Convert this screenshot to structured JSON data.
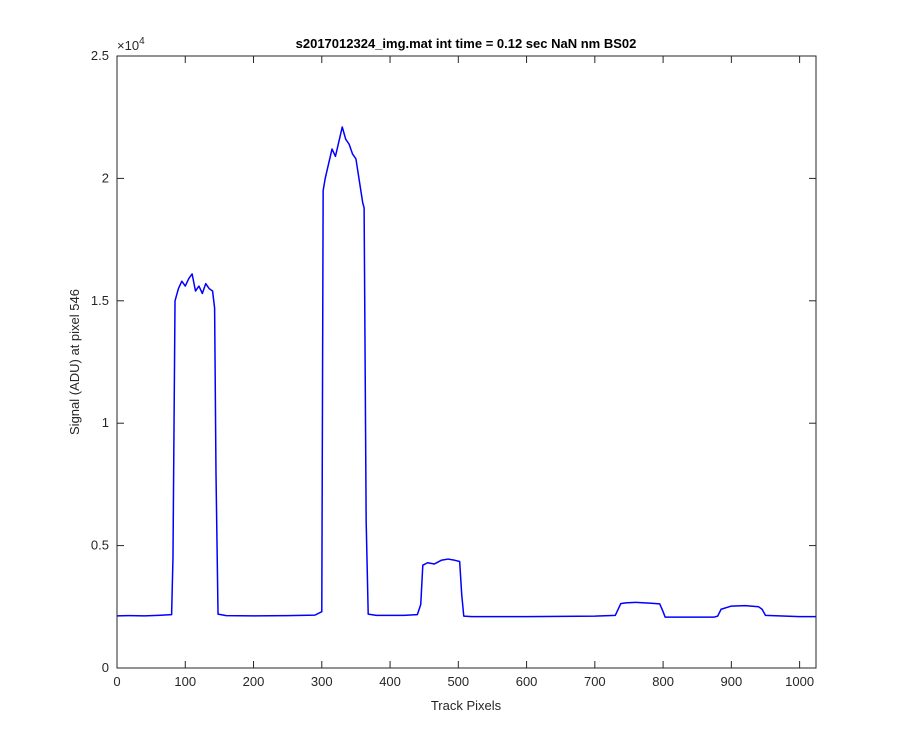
{
  "chart_data": {
    "type": "line",
    "title": "s2017012324_img.mat int time = 0.12 sec  NaN nm BS02",
    "xlabel": "Track Pixels",
    "ylabel": "Signal (ADU) at pixel 546",
    "xlim": [
      0,
      1024
    ],
    "ylim": [
      0,
      25000
    ],
    "y_exponent_label": "×10",
    "y_exponent_power": "4",
    "x_ticks": [
      0,
      100,
      200,
      300,
      400,
      500,
      600,
      700,
      800,
      900,
      1000
    ],
    "x_tick_labels": [
      "0",
      "100",
      "200",
      "300",
      "400",
      "500",
      "600",
      "700",
      "800",
      "900",
      "1000"
    ],
    "y_ticks": [
      0,
      5000,
      10000,
      15000,
      20000,
      25000
    ],
    "y_tick_labels": [
      "0",
      "0.5",
      "1",
      "1.5",
      "2",
      "2.5"
    ],
    "grid": false,
    "line_color": "#0000ff",
    "series": [
      {
        "x": [
          0,
          20,
          40,
          60,
          80,
          82,
          85,
          90,
          95,
          100,
          105,
          110,
          115,
          120,
          125,
          130,
          135,
          140,
          143,
          145,
          148,
          160,
          200,
          250,
          290,
          300,
          302,
          305,
          310,
          315,
          320,
          325,
          330,
          335,
          340,
          345,
          350,
          355,
          360,
          362,
          365,
          368,
          380,
          420,
          440,
          445,
          448,
          455,
          465,
          475,
          485,
          495,
          502,
          505,
          508,
          520,
          600,
          700,
          730,
          735,
          738,
          745,
          760,
          780,
          795,
          800,
          803,
          830,
          875,
          880,
          885,
          900,
          920,
          940,
          945,
          950,
          1000,
          1024
        ],
        "y": [
          2130,
          2140,
          2130,
          2150,
          2180,
          4500,
          15000,
          15500,
          15800,
          15600,
          15900,
          16100,
          15400,
          15600,
          15300,
          15700,
          15500,
          15400,
          14700,
          8000,
          2200,
          2140,
          2130,
          2140,
          2160,
          2300,
          19500,
          20000,
          20600,
          21200,
          20900,
          21500,
          22100,
          21600,
          21400,
          21000,
          20800,
          19900,
          19000,
          18800,
          6000,
          2200,
          2150,
          2150,
          2180,
          2600,
          4200,
          4300,
          4250,
          4400,
          4450,
          4400,
          4350,
          3000,
          2120,
          2100,
          2100,
          2120,
          2150,
          2450,
          2630,
          2660,
          2680,
          2650,
          2620,
          2300,
          2080,
          2080,
          2080,
          2120,
          2400,
          2530,
          2550,
          2500,
          2400,
          2150,
          2100,
          2100
        ]
      }
    ]
  }
}
